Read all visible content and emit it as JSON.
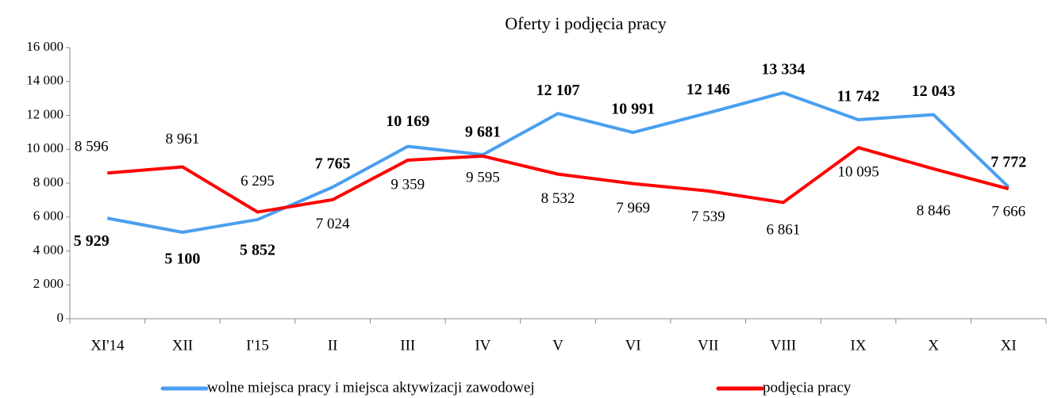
{
  "chart_data": {
    "type": "line",
    "title": "Oferty i podjęcia pracy",
    "categories": [
      "XI'14",
      "XII",
      "I'15",
      "II",
      "III",
      "IV",
      "V",
      "VI",
      "VII",
      "VIII",
      "IX",
      "X",
      "XI"
    ],
    "series": [
      {
        "name": "wolne miejsca pracy i miejsca aktywizacji zawodowej",
        "color": "#4a9ff0",
        "values": [
          5929,
          5100,
          5852,
          7765,
          10169,
          9681,
          12107,
          10991,
          12146,
          13334,
          11742,
          12043,
          7772
        ],
        "value_labels": [
          "5 929",
          "5 100",
          "5 852",
          "7 765",
          "10 169",
          "9 681",
          "12 107",
          "10 991",
          "12 146",
          "13 334",
          "11 742",
          "12 043",
          "7 772"
        ]
      },
      {
        "name": "podjęcia pracy",
        "color": "#ff0000",
        "values": [
          8596,
          8961,
          6295,
          7024,
          9359,
          9595,
          8532,
          7969,
          7539,
          6861,
          10095,
          8846,
          7666
        ],
        "value_labels": [
          "8 596",
          "8 961",
          "6 295",
          "7 024",
          "9 359",
          "9 595",
          "8 532",
          "7 969",
          "7 539",
          "6 861",
          "10 095",
          "8 846",
          "7 666"
        ]
      }
    ],
    "ylim": [
      0,
      16000
    ],
    "yticks": [
      0,
      {
        "value": 2000,
        "label": "2 000"
      },
      {
        "value": 4000,
        "label": "4 000"
      },
      {
        "value": 6000,
        "label": "6 000"
      },
      {
        "value": 8000,
        "label": "8 000"
      },
      {
        "value": 10000,
        "label": "10 000"
      },
      {
        "value": 12000,
        "label": "12 000"
      },
      {
        "value": 14000,
        "label": "14 000"
      },
      {
        "value": 16000,
        "label": "16 000"
      }
    ],
    "grid": false,
    "legend": "bottom"
  }
}
